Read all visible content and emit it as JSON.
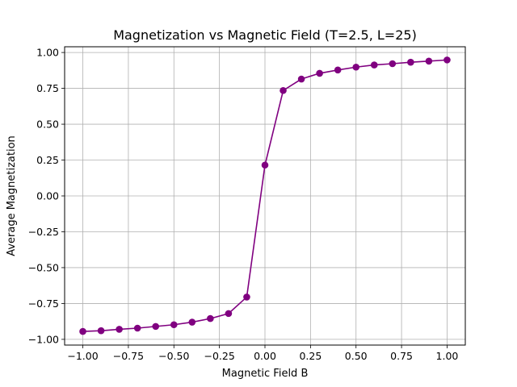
{
  "chart_data": {
    "type": "line",
    "title": "Magnetization vs Magnetic Field (T=2.5, L=25)",
    "xlabel": "Magnetic Field B",
    "ylabel": "Average Magnetization",
    "xlim": [
      -1.1,
      1.1
    ],
    "ylim": [
      -1.04,
      1.04
    ],
    "grid": true,
    "x_ticks": [
      -1.0,
      -0.75,
      -0.5,
      -0.25,
      0.0,
      0.25,
      0.5,
      0.75,
      1.0
    ],
    "x_tick_labels": [
      "−1.00",
      "−0.75",
      "−0.50",
      "−0.25",
      "0.00",
      "0.25",
      "0.50",
      "0.75",
      "1.00"
    ],
    "y_ticks": [
      -1.0,
      -0.75,
      -0.5,
      -0.25,
      0.0,
      0.25,
      0.5,
      0.75,
      1.0
    ],
    "y_tick_labels": [
      "−1.00",
      "−0.75",
      "−0.50",
      "−0.25",
      "0.00",
      "0.25",
      "0.50",
      "0.75",
      "1.00"
    ],
    "series": [
      {
        "color": "#800080",
        "marker": "circle",
        "x": [
          -1.0,
          -0.9,
          -0.8,
          -0.7,
          -0.6,
          -0.5,
          -0.4,
          -0.3,
          -0.2,
          -0.1,
          0.0,
          0.1,
          0.2,
          0.3,
          0.4,
          0.5,
          0.6,
          0.7,
          0.8,
          0.9,
          1.0
        ],
        "y": [
          -0.945,
          -0.94,
          -0.93,
          -0.922,
          -0.91,
          -0.898,
          -0.88,
          -0.855,
          -0.82,
          -0.705,
          0.215,
          0.735,
          0.815,
          0.855,
          0.878,
          0.898,
          0.913,
          0.922,
          0.932,
          0.94,
          0.948
        ]
      }
    ]
  }
}
